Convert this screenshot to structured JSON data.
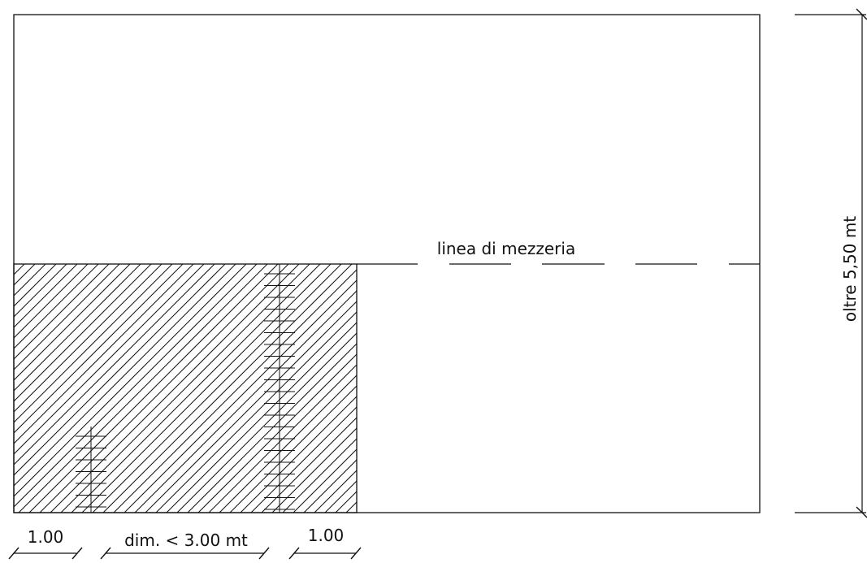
{
  "labels": {
    "centerline": "linea di mezzeria",
    "height": "oltre 5,50 mt",
    "dim_left": "1.00",
    "dim_middle": "dim. < 3.00 mt",
    "dim_right": "1.00"
  },
  "colors": {
    "stroke": "#111111",
    "background": "#ffffff"
  }
}
